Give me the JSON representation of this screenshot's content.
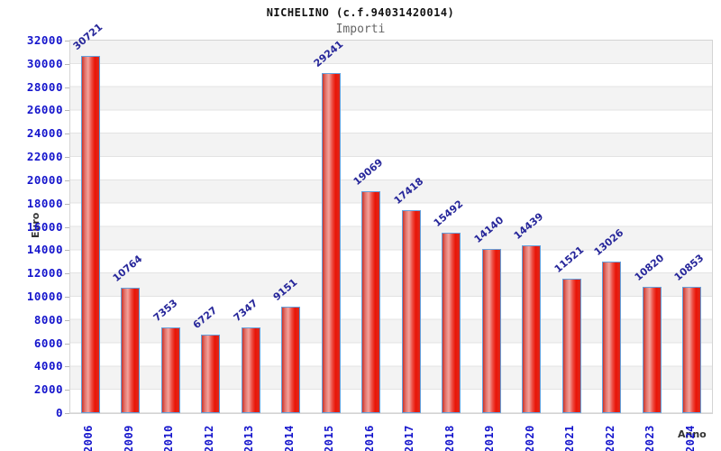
{
  "header": {
    "title": "NICHELINO (c.f.94031420014)",
    "subtitle": "Importi"
  },
  "axes": {
    "y_title": "Euro",
    "x_title": "Anno",
    "y_ticks": [
      "0",
      "2000",
      "4000",
      "6000",
      "8000",
      "10000",
      "12000",
      "14000",
      "16000",
      "18000",
      "20000",
      "22000",
      "24000",
      "26000",
      "28000",
      "30000",
      "32000"
    ]
  },
  "chart_data": {
    "type": "bar",
    "title": "NICHELINO (c.f.94031420014)",
    "subtitle": "Importi",
    "xlabel": "Anno",
    "ylabel": "Euro",
    "categories": [
      "2006",
      "2009",
      "2010",
      "2012",
      "2013",
      "2014",
      "2015",
      "2016",
      "2017",
      "2018",
      "2019",
      "2020",
      "2021",
      "2022",
      "2023",
      "2024"
    ],
    "values": [
      30721,
      10764,
      7353,
      6727,
      7347,
      9151,
      29241,
      19069,
      17418,
      15492,
      14140,
      14439,
      11521,
      13026,
      10820,
      10853
    ],
    "ylim": [
      0,
      32000
    ],
    "ytick_step": 2000,
    "grid": "horizontal gridlines with alternating white/gray bands",
    "legend": "none",
    "colors": {
      "bar_fill": "#e8231a",
      "bar_border": "#64a0dc",
      "value_label": "#26269a",
      "tick_label": "#1414cc",
      "band_gray": "#f3f3f3",
      "gridline": "#e3e3e3",
      "axis_title": "#333333",
      "subtitle": "#666666"
    }
  }
}
